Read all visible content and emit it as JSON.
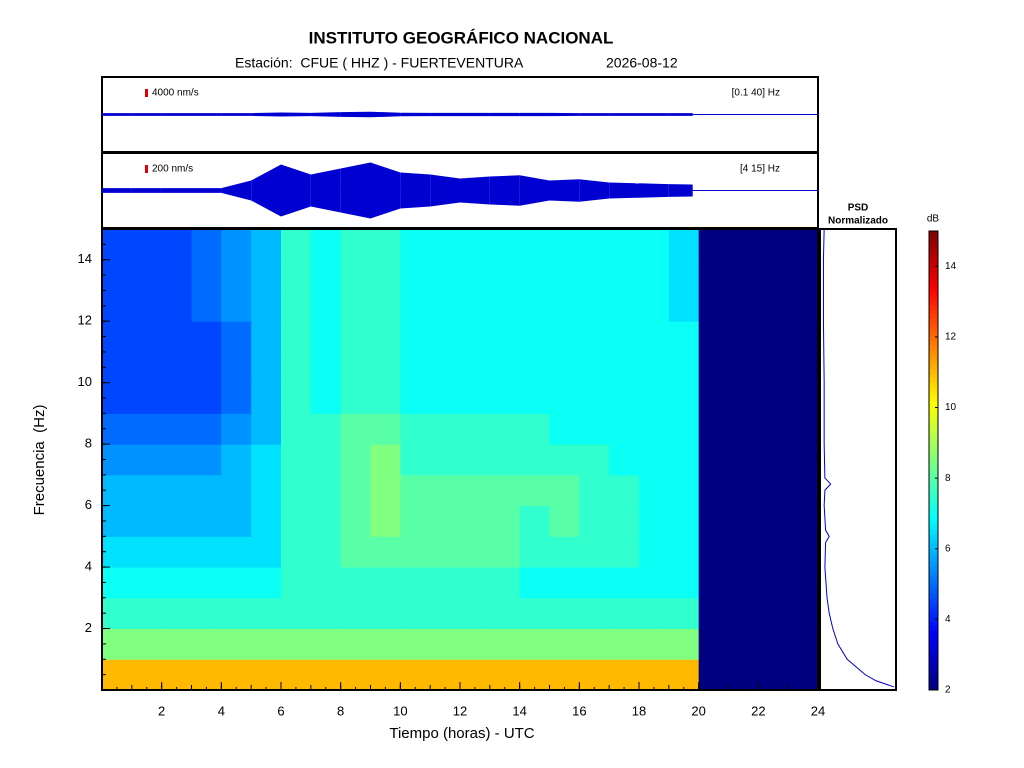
{
  "chart_data": {
    "type": "spectrogram",
    "title": "INSTITUTO GEOGRÁFICO NACIONAL",
    "station": "Estación:  CFUE ( HHZ ) - FUERTEVENTURA",
    "date": "2026-08-12",
    "traces": [
      {
        "scale_label": "4000 nm/s",
        "scale": 4000,
        "band_label": "[0.1 40] Hz",
        "color": "#0000d0",
        "x": [
          0,
          1,
          2,
          3,
          4,
          5,
          6,
          7,
          8,
          9,
          10,
          11,
          12,
          13,
          14,
          15,
          16,
          17,
          18,
          19,
          19.8
        ],
        "values": [
          700,
          700,
          700,
          700,
          700,
          700,
          1000,
          800,
          1200,
          1400,
          900,
          800,
          800,
          800,
          800,
          800,
          700,
          700,
          700,
          700,
          700
        ]
      },
      {
        "scale_label": "200 nm/s",
        "scale": 200,
        "band_label": "[4 15] Hz",
        "color": "#0000d0",
        "x": [
          0,
          1,
          2,
          3,
          4,
          5,
          6,
          7,
          8,
          9,
          10,
          11,
          12,
          13,
          14,
          15,
          16,
          17,
          18,
          19,
          19.8
        ],
        "values": [
          60,
          60,
          60,
          60,
          60,
          250,
          650,
          400,
          550,
          700,
          450,
          400,
          300,
          350,
          380,
          250,
          280,
          200,
          180,
          160,
          150
        ]
      }
    ],
    "spectrogram": {
      "xlabel": "Tiempo (horas) - UTC",
      "ylabel": "Frecuencia  (Hz)",
      "xlim": [
        0,
        24
      ],
      "ylim": [
        0,
        15
      ],
      "xticks": [
        2,
        4,
        6,
        8,
        10,
        12,
        14,
        16,
        18,
        20,
        22,
        24
      ],
      "yticks": [
        2,
        4,
        6,
        8,
        10,
        12,
        14
      ],
      "xbins": [
        0,
        1,
        2,
        3,
        4,
        5,
        6,
        7,
        8,
        9,
        10,
        11,
        12,
        13,
        14,
        15,
        16,
        17,
        18,
        19,
        20,
        21,
        22,
        23,
        24
      ],
      "ybins": [
        0,
        1,
        2,
        3,
        4,
        5,
        6,
        7,
        8,
        9,
        10,
        11,
        12,
        13,
        14,
        15
      ],
      "values": [
        [
          11,
          11,
          11,
          11,
          11,
          11,
          11,
          11,
          11,
          11,
          11,
          11,
          11,
          11,
          11,
          11,
          11,
          11,
          11,
          11,
          2,
          2,
          2,
          2
        ],
        [
          8.5,
          8.5,
          8.5,
          8.5,
          8.5,
          8.5,
          8.5,
          8.5,
          8.5,
          8.5,
          8.5,
          8.5,
          8.5,
          8.5,
          8.5,
          8.5,
          8.5,
          8.5,
          8.5,
          8.5,
          2,
          2,
          2,
          2
        ],
        [
          7.5,
          7.5,
          7.5,
          7.5,
          7.5,
          7.5,
          7.5,
          7.5,
          7.5,
          7.5,
          7.5,
          7.5,
          7.5,
          7.5,
          7.5,
          7.5,
          7.5,
          7.5,
          7.5,
          7.5,
          2,
          2,
          2,
          2
        ],
        [
          7,
          7,
          7,
          7,
          7,
          7,
          7.5,
          7.5,
          7.5,
          7.5,
          7.5,
          7.5,
          7.5,
          7.5,
          7,
          7,
          7,
          7,
          7,
          7,
          2,
          2,
          2,
          2
        ],
        [
          6.5,
          6.5,
          6.5,
          6.5,
          6.5,
          6.5,
          7.5,
          7.5,
          8,
          8,
          8,
          8,
          8,
          8,
          7.5,
          7.5,
          7.5,
          7.5,
          7,
          7,
          2,
          2,
          2,
          2
        ],
        [
          6,
          6,
          6,
          6,
          6,
          6.5,
          7.5,
          7.5,
          8,
          8.5,
          8,
          8,
          8,
          8,
          7.5,
          8,
          7.5,
          7.5,
          7,
          7,
          2,
          2,
          2,
          2
        ],
        [
          6,
          6,
          6,
          6,
          6,
          6.5,
          7.5,
          7.5,
          8,
          8.5,
          8,
          8,
          8,
          8,
          8,
          8,
          7.5,
          7.5,
          7,
          7,
          2,
          2,
          2,
          2
        ],
        [
          5.5,
          5.5,
          5.5,
          5.5,
          6,
          6.5,
          7.5,
          7.5,
          8,
          8.5,
          7.5,
          7.5,
          7.5,
          7.5,
          7.5,
          7.5,
          7.5,
          7,
          7,
          7,
          2,
          2,
          2,
          2
        ],
        [
          5,
          5,
          5,
          5,
          5.5,
          6,
          7.5,
          7.5,
          8,
          8,
          7.5,
          7.5,
          7.5,
          7.5,
          7.5,
          7,
          7,
          7,
          7,
          7,
          2,
          2,
          2,
          2
        ],
        [
          4.5,
          4.5,
          4.5,
          4.5,
          5,
          6,
          7.5,
          7,
          7.5,
          7.5,
          7,
          7,
          7,
          7,
          7,
          7,
          7,
          7,
          7,
          7,
          2,
          2,
          2,
          2
        ],
        [
          4.5,
          4.5,
          4.5,
          4.5,
          5,
          6,
          7.5,
          7,
          7.5,
          7.5,
          7,
          7,
          7,
          7,
          7,
          7,
          7,
          7,
          7,
          7,
          2,
          2,
          2,
          2
        ],
        [
          4.5,
          4.5,
          4.5,
          4.5,
          5,
          6,
          7.5,
          7,
          7.5,
          7.5,
          7,
          7,
          7,
          7,
          7,
          7,
          7,
          7,
          7,
          7,
          2,
          2,
          2,
          2
        ],
        [
          4.5,
          4.5,
          4.5,
          5,
          5.5,
          6,
          7.5,
          7,
          7.5,
          7.5,
          7,
          7,
          7,
          7,
          7,
          7,
          7,
          7,
          7,
          6.5,
          2,
          2,
          2,
          2
        ],
        [
          4.5,
          4.5,
          4.5,
          5,
          5.5,
          6,
          7.5,
          7,
          7.5,
          7.5,
          7,
          7,
          7,
          7,
          7,
          7,
          7,
          7,
          7,
          6.5,
          2,
          2,
          2,
          2
        ],
        [
          4.5,
          4.5,
          4.5,
          5,
          5.5,
          6,
          7.5,
          7,
          7.5,
          7.5,
          7,
          7,
          7,
          7,
          7,
          7,
          7,
          7,
          7,
          6.5,
          2,
          2,
          2,
          2
        ]
      ]
    },
    "psd": {
      "title": [
        "PSD",
        "Normalizado"
      ],
      "color": "#0000d0",
      "xlim": [
        0,
        1
      ],
      "freq": [
        0.1,
        0.3,
        0.5,
        1,
        1.5,
        2,
        2.5,
        3,
        4,
        4.8,
        5,
        5.2,
        6,
        6.5,
        6.7,
        6.9,
        8,
        10,
        12,
        14,
        15
      ],
      "values": [
        1,
        0.75,
        0.6,
        0.35,
        0.22,
        0.15,
        0.1,
        0.07,
        0.04,
        0.05,
        0.1,
        0.05,
        0.03,
        0.04,
        0.12,
        0.04,
        0.03,
        0.03,
        0.02,
        0.02,
        0.03
      ]
    },
    "colorbar": {
      "label": "dB",
      "clim": [
        2,
        15
      ],
      "ticks": [
        2,
        4,
        6,
        8,
        10,
        12,
        14
      ]
    }
  }
}
